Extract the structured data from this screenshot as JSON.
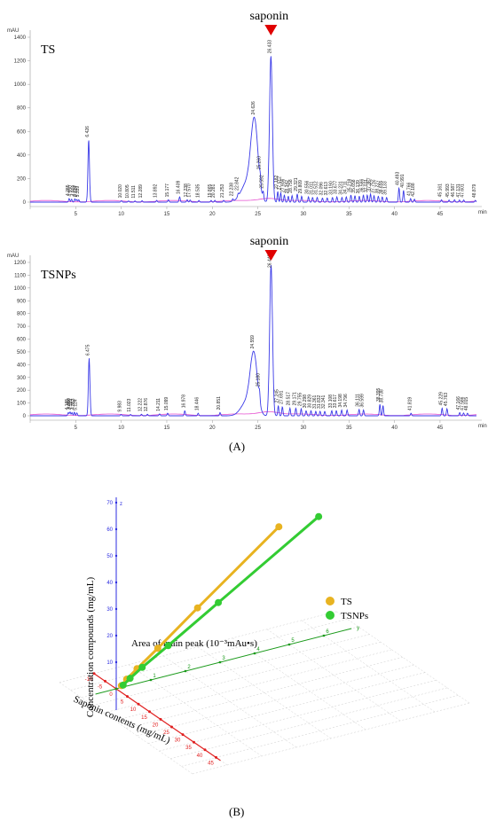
{
  "panel_a_label": "(A)",
  "panel_b_label": "(B)",
  "chart_data": [
    {
      "type": "line",
      "sample": "TS",
      "annotation": "saponin",
      "y_unit": "mAU",
      "x_unit": "min",
      "xlim": [
        0,
        49
      ],
      "ylim": [
        0,
        1400
      ],
      "x_ticks": [
        0,
        5,
        10,
        15,
        20,
        25,
        30,
        35,
        40,
        45
      ],
      "y_ticks": [
        0,
        200,
        400,
        600,
        800,
        1000,
        1200,
        1400
      ],
      "main_peak": {
        "rt": 26.433,
        "height": 1240
      },
      "peaks": [
        {
          "rt": 4.285,
          "h": 30,
          "label": "4.285"
        },
        {
          "rt": 4.55,
          "h": 25,
          "label": "4.550"
        },
        {
          "rt": 4.909,
          "h": 28,
          "label": "4.909"
        },
        {
          "rt": 5.124,
          "h": 22,
          "label": "5.124"
        },
        {
          "rt": 5.339,
          "h": 20,
          "label": "5.339"
        },
        {
          "rt": 6.426,
          "h": 530,
          "label": "6.426"
        },
        {
          "rt": 10.02,
          "h": 12,
          "label": "10.020"
        },
        {
          "rt": 10.805,
          "h": 10,
          "label": "10.805"
        },
        {
          "rt": 11.511,
          "h": 10,
          "label": "11.511"
        },
        {
          "rt": 12.289,
          "h": 12,
          "label": "12.289"
        },
        {
          "rt": 13.892,
          "h": 15,
          "label": "13.892"
        },
        {
          "rt": 15.177,
          "h": 20,
          "label": "15.177"
        },
        {
          "rt": 16.409,
          "h": 45,
          "label": "16.409"
        },
        {
          "rt": 17.238,
          "h": 20,
          "label": "17.238"
        },
        {
          "rt": 17.57,
          "h": 18,
          "label": "17.570"
        },
        {
          "rt": 18.535,
          "h": 15,
          "label": "18.535"
        },
        {
          "rt": 19.865,
          "h": 15,
          "label": "19.865"
        },
        {
          "rt": 20.281,
          "h": 15,
          "label": "20.281"
        },
        {
          "rt": 21.253,
          "h": 15,
          "label": "21.253"
        },
        {
          "rt": 22.238,
          "h": 20,
          "label": "22.238"
        },
        {
          "rt": 22.842,
          "h": 25,
          "label": "22.842"
        },
        {
          "rt": 24.626,
          "h": 650,
          "label": "24.626"
        },
        {
          "rt": 25.26,
          "h": 70,
          "label": "25.260"
        },
        {
          "rt": 25.592,
          "h": 60,
          "label": "25.592"
        },
        {
          "rt": 26.433,
          "h": 1240,
          "label": "26.433"
        },
        {
          "rt": 27.182,
          "h": 90,
          "label": "27.182"
        },
        {
          "rt": 27.512,
          "h": 80,
          "label": "27.512"
        },
        {
          "rt": 27.906,
          "h": 60,
          "label": "27.906"
        },
        {
          "rt": 28.342,
          "h": 50,
          "label": "28.342"
        },
        {
          "rt": 28.758,
          "h": 55,
          "label": "28.758"
        },
        {
          "rt": 29.321,
          "h": 70,
          "label": "29.321"
        },
        {
          "rt": 29.809,
          "h": 50,
          "label": "29.809"
        },
        {
          "rt": 30.556,
          "h": 45,
          "label": "30.556"
        },
        {
          "rt": 31.011,
          "h": 40,
          "label": "31.011"
        },
        {
          "rt": 31.512,
          "h": 40,
          "label": "31.512"
        },
        {
          "rt": 32.096,
          "h": 35,
          "label": "32.096"
        },
        {
          "rt": 32.613,
          "h": 35,
          "label": "32.613"
        },
        {
          "rt": 33.19,
          "h": 40,
          "label": "33.190"
        },
        {
          "rt": 33.677,
          "h": 45,
          "label": "33.677"
        },
        {
          "rt": 34.231,
          "h": 40,
          "label": "34.231"
        },
        {
          "rt": 34.711,
          "h": 45,
          "label": "34.711"
        },
        {
          "rt": 35.218,
          "h": 60,
          "label": "35.218"
        },
        {
          "rt": 35.658,
          "h": 55,
          "label": "35.658"
        },
        {
          "rt": 36.139,
          "h": 50,
          "label": "36.139"
        },
        {
          "rt": 36.586,
          "h": 60,
          "label": "36.586"
        },
        {
          "rt": 37.011,
          "h": 60,
          "label": "37.011"
        },
        {
          "rt": 37.367,
          "h": 70,
          "label": "37.367"
        },
        {
          "rt": 37.752,
          "h": 55,
          "label": "37.752"
        },
        {
          "rt": 38.227,
          "h": 50,
          "label": "38.227"
        },
        {
          "rt": 38.655,
          "h": 45,
          "label": "38.655"
        },
        {
          "rt": 39.133,
          "h": 40,
          "label": "39.133"
        },
        {
          "rt": 40.493,
          "h": 120,
          "label": "40.493"
        },
        {
          "rt": 40.991,
          "h": 100,
          "label": "40.991"
        },
        {
          "rt": 41.766,
          "h": 30,
          "label": "41.766"
        },
        {
          "rt": 42.188,
          "h": 25,
          "label": "42.188"
        },
        {
          "rt": 45.161,
          "h": 20,
          "label": "45.161"
        },
        {
          "rt": 45.993,
          "h": 18,
          "label": "45.993"
        },
        {
          "rt": 46.587,
          "h": 20,
          "label": "46.587"
        },
        {
          "rt": 47.131,
          "h": 18,
          "label": "47.131"
        },
        {
          "rt": 47.601,
          "h": 18,
          "label": "47.601"
        },
        {
          "rt": 48.879,
          "h": 15,
          "label": "48.879"
        }
      ]
    },
    {
      "type": "line",
      "sample": "TSNPs",
      "annotation": "saponin",
      "y_unit": "mAU",
      "x_unit": "min",
      "xlim": [
        0,
        49
      ],
      "ylim": [
        0,
        1200
      ],
      "x_ticks": [
        0,
        5,
        10,
        15,
        20,
        25,
        30,
        35,
        40,
        45
      ],
      "y_ticks": [
        0,
        100,
        200,
        300,
        400,
        500,
        600,
        700,
        800,
        900,
        1000,
        1100,
        1200
      ],
      "main_peak": {
        "rt": 26.448,
        "height": 1180
      },
      "peaks": [
        {
          "rt": 4.185,
          "h": 25,
          "label": "4.185"
        },
        {
          "rt": 4.38,
          "h": 30,
          "label": "4.380"
        },
        {
          "rt": 4.599,
          "h": 25,
          "label": "4.599"
        },
        {
          "rt": 4.853,
          "h": 28,
          "label": "4.853"
        },
        {
          "rt": 5.124,
          "h": 22,
          "label": "5.124"
        },
        {
          "rt": 6.475,
          "h": 450,
          "label": "6.475"
        },
        {
          "rt": 9.983,
          "h": 10,
          "label": "9.983"
        },
        {
          "rt": 11.023,
          "h": 10,
          "label": "11.023"
        },
        {
          "rt": 12.222,
          "h": 12,
          "label": "12.222"
        },
        {
          "rt": 12.876,
          "h": 12,
          "label": "12.876"
        },
        {
          "rt": 14.211,
          "h": 15,
          "label": "14.211"
        },
        {
          "rt": 15.099,
          "h": 20,
          "label": "15.099"
        },
        {
          "rt": 16.978,
          "h": 40,
          "label": "16.978"
        },
        {
          "rt": 18.446,
          "h": 20,
          "label": "18.446"
        },
        {
          "rt": 20.851,
          "h": 25,
          "label": "20.851"
        },
        {
          "rt": 24.559,
          "h": 450,
          "label": "24.559"
        },
        {
          "rt": 25.18,
          "h": 70,
          "label": "25.180"
        },
        {
          "rt": 26.448,
          "h": 1180,
          "label": "26.448"
        },
        {
          "rt": 27.245,
          "h": 80,
          "label": "27.245"
        },
        {
          "rt": 27.691,
          "h": 70,
          "label": "27.691"
        },
        {
          "rt": 28.517,
          "h": 60,
          "label": "28.517"
        },
        {
          "rt": 29.171,
          "h": 60,
          "label": "29.171"
        },
        {
          "rt": 29.755,
          "h": 55,
          "label": "29.755"
        },
        {
          "rt": 30.298,
          "h": 40,
          "label": "30.298"
        },
        {
          "rt": 30.829,
          "h": 40,
          "label": "30.829"
        },
        {
          "rt": 31.361,
          "h": 35,
          "label": "31.361"
        },
        {
          "rt": 31.832,
          "h": 35,
          "label": "31.832"
        },
        {
          "rt": 32.341,
          "h": 35,
          "label": "32.341"
        },
        {
          "rt": 33.108,
          "h": 40,
          "label": "33.108"
        },
        {
          "rt": 33.617,
          "h": 40,
          "label": "33.617"
        },
        {
          "rt": 34.198,
          "h": 45,
          "label": "34.198"
        },
        {
          "rt": 34.796,
          "h": 45,
          "label": "34.796"
        },
        {
          "rt": 36.111,
          "h": 50,
          "label": "36.111"
        },
        {
          "rt": 36.599,
          "h": 45,
          "label": "36.599"
        },
        {
          "rt": 38.395,
          "h": 90,
          "label": "38.395"
        },
        {
          "rt": 38.738,
          "h": 80,
          "label": "38.738"
        },
        {
          "rt": 41.819,
          "h": 20,
          "label": "41.819"
        },
        {
          "rt": 45.229,
          "h": 60,
          "label": "45.229"
        },
        {
          "rt": 45.763,
          "h": 55,
          "label": "45.763"
        },
        {
          "rt": 47.166,
          "h": 25,
          "label": "47.166"
        },
        {
          "rt": 47.586,
          "h": 22,
          "label": "47.586"
        },
        {
          "rt": 48.015,
          "h": 20,
          "label": "48.015"
        }
      ]
    },
    {
      "type": "scatter",
      "three_d": true,
      "title": "",
      "axis_labels": {
        "z": "Concentration compounds (mg/mL)",
        "y": "Area of main peak (10⁻³mAu•s)",
        "x": "Saponin contents (mg/mL)"
      },
      "z_ticks": [
        0,
        10,
        20,
        30,
        40,
        50,
        60,
        70
      ],
      "x_ticks": [
        -10,
        -5,
        0,
        5,
        10,
        15,
        20,
        25,
        30,
        35,
        40,
        45
      ],
      "y_ticks": [
        0,
        1,
        2,
        3,
        4,
        5,
        6
      ],
      "axis_letters": {
        "z": "z",
        "y": "y"
      },
      "legend_position": "right",
      "series": [
        {
          "name": "TS",
          "color": "#E8B321",
          "points": [
            [
              0.7,
              0.3,
              0.8
            ],
            [
              2.6,
              0.6,
              2.9
            ],
            [
              5.1,
              1.2,
              6.2
            ],
            [
              10.2,
              2.4,
              12.5
            ],
            [
              20.4,
              4.7,
              25.1
            ],
            [
              40.8,
              9.4,
              50.3
            ]
          ]
        },
        {
          "name": "TSNPs",
          "color": "#33CC33",
          "points": [
            [
              0.7,
              0.4,
              0.8
            ],
            [
              2.6,
              0.8,
              2.9
            ],
            [
              5.1,
              1.5,
              6.2
            ],
            [
              10.2,
              3.0,
              12.5
            ],
            [
              20.4,
              5.9,
              25.1
            ],
            [
              40.8,
              11.7,
              50.3
            ]
          ]
        }
      ]
    }
  ]
}
